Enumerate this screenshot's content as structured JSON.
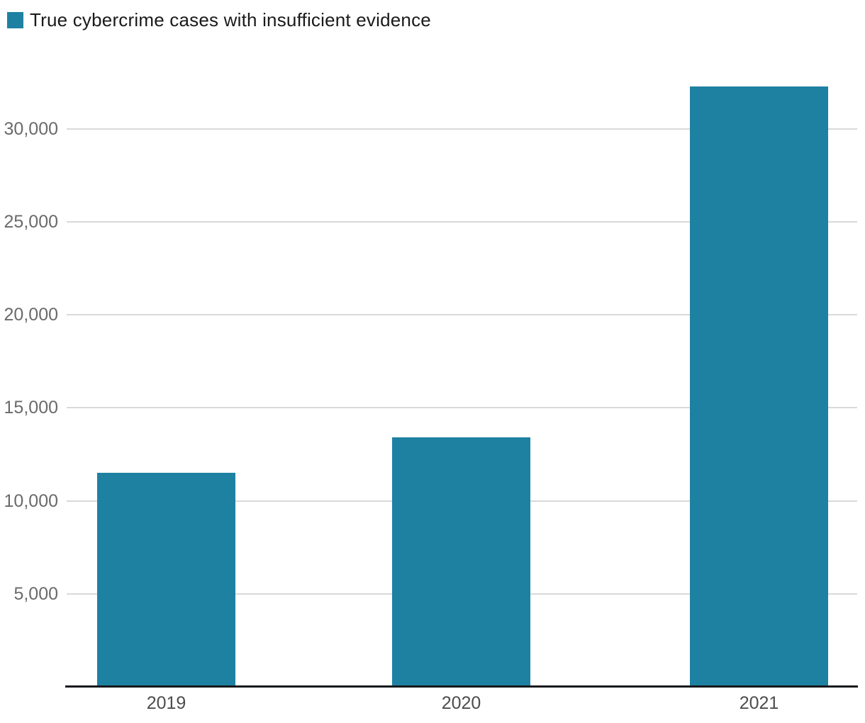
{
  "chart_data": {
    "type": "bar",
    "title": "",
    "legend": {
      "label": "True cybercrime cases with insufficient evidence",
      "position": "top-left"
    },
    "categories": [
      "2019",
      "2020",
      "2021"
    ],
    "values": [
      11500,
      13400,
      32250
    ],
    "series": [
      {
        "name": "True cybercrime cases with insufficient evidence",
        "values": [
          11500,
          13400,
          32250
        ]
      }
    ],
    "xlabel": "",
    "ylabel": "",
    "ylim": [
      0,
      33000
    ],
    "yticks": {
      "values": [
        5000,
        10000,
        15000,
        20000,
        25000,
        30000
      ],
      "labels": [
        "5,000",
        "10,000",
        "15,000",
        "20,000",
        "25,000",
        "30,000"
      ]
    },
    "grid": "horizontal-only",
    "colors": {
      "bar": "#1e81a1",
      "legend_text": "#1a1a1a",
      "ytick_text": "#6a6a6a",
      "xtick_text": "#4d4d4d",
      "gridline": "#d9d9d9",
      "axis_line": "#17191d",
      "background": "#ffffff"
    }
  }
}
